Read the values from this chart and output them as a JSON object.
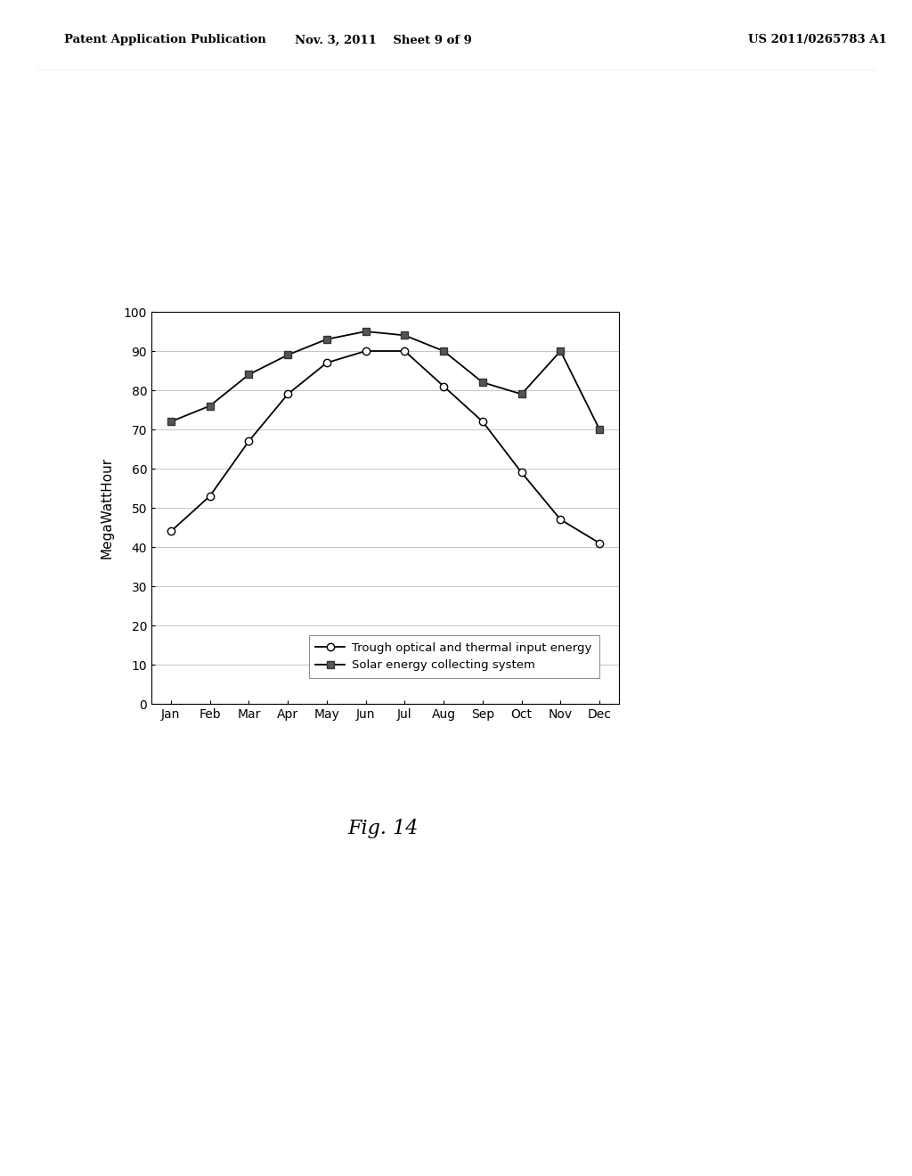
{
  "months": [
    "Jan",
    "Feb",
    "Mar",
    "Apr",
    "May",
    "Jun",
    "Jul",
    "Aug",
    "Sep",
    "Oct",
    "Nov",
    "Dec"
  ],
  "trough_values": [
    44,
    53,
    67,
    79,
    87,
    90,
    90,
    81,
    72,
    59,
    47,
    41
  ],
  "solar_values": [
    72,
    76,
    84,
    89,
    93,
    95,
    94,
    90,
    82,
    79,
    90,
    70
  ],
  "ylabel": "MegaWattHour",
  "ylim": [
    0,
    100
  ],
  "yticks": [
    0,
    10,
    20,
    30,
    40,
    50,
    60,
    70,
    80,
    90,
    100
  ],
  "legend_trough": "Trough optical and thermal input energy",
  "legend_solar": "Solar energy collecting system",
  "fig_caption": "Fig. 14",
  "header_left": "Patent Application Publication",
  "header_mid": "Nov. 3, 2011    Sheet 9 of 9",
  "header_right": "US 2011/0265783 A1",
  "background_color": "#ffffff",
  "plot_bg_color": "#ffffff",
  "line_color": "#000000",
  "grid_color": "#bbbbbb"
}
